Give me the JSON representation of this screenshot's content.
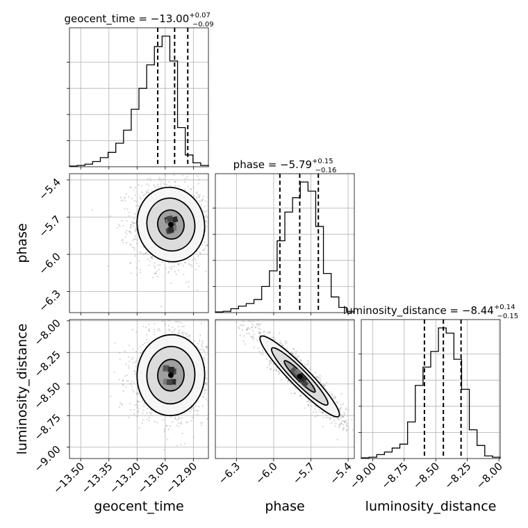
{
  "chart_data": {
    "type": "corner",
    "grid": true,
    "parameters": [
      {
        "name": "geocent_time",
        "title": {
          "prefix": "geocent_time = ",
          "median": "−13.00",
          "plus": "+0.07",
          "minus": "−0.09"
        },
        "median": -13.0,
        "quantiles": [
          -13.09,
          -13.0,
          -12.93
        ],
        "range": [
          -13.56,
          -12.82
        ],
        "ticks": [
          -13.5,
          -13.35,
          -13.2,
          -13.05,
          -12.9
        ],
        "tick_labels": [
          "−13.50",
          "−13.35",
          "−13.20",
          "−13.05",
          "−12.90"
        ],
        "hist_counts": [
          0.5,
          1,
          2,
          4,
          7,
          11,
          18,
          28,
          44,
          60,
          78,
          92,
          100,
          81,
          30,
          9,
          3,
          1
        ]
      },
      {
        "name": "phase",
        "title": {
          "prefix": "phase = ",
          "median": "−5.79",
          "plus": "+0.15",
          "minus": "−0.16"
        },
        "median": -5.79,
        "quantiles": [
          -5.95,
          -5.79,
          -5.64
        ],
        "range": [
          -6.47,
          -5.35
        ],
        "ticks": [
          -6.3,
          -6.0,
          -5.7,
          -5.4
        ],
        "tick_labels": [
          "−6.3",
          "−6.0",
          "−5.7",
          "−5.4"
        ],
        "hist_counts": [
          0.5,
          1,
          3,
          5,
          7,
          10,
          20,
          32,
          55,
          77,
          88,
          100,
          93,
          66,
          30,
          12,
          4,
          1
        ]
      },
      {
        "name": "luminosity_distance",
        "title": {
          "prefix": "luminosity_distance = ",
          "median": "−8.44",
          "plus": "+0.14",
          "minus": "−0.15"
        },
        "median": -8.44,
        "quantiles": [
          -8.59,
          -8.44,
          -8.3
        ],
        "range": [
          -9.09,
          -7.99
        ],
        "ticks": [
          -9.0,
          -8.75,
          -8.5,
          -8.25,
          -8.0
        ],
        "tick_labels": [
          "−9.00",
          "−8.75",
          "−8.50",
          "−8.25",
          "−8.00"
        ],
        "hist_counts": [
          0.5,
          1,
          3,
          5,
          8,
          11,
          28,
          56,
          70,
          82,
          100,
          96,
          76,
          53,
          22,
          10,
          2,
          1
        ]
      }
    ],
    "pairs": [
      {
        "x": "geocent_time",
        "y": "phase",
        "center": [
          -13.02,
          -5.76
        ],
        "sigma": [
          0.09,
          0.15
        ],
        "rho": -0.05
      },
      {
        "x": "geocent_time",
        "y": "luminosity_distance",
        "center": [
          -13.02,
          -8.43
        ],
        "sigma": [
          0.09,
          0.16
        ],
        "rho": 0.02
      },
      {
        "x": "phase",
        "y": "luminosity_distance",
        "center": [
          -5.79,
          -8.44
        ],
        "sigma": [
          0.16,
          0.16
        ],
        "rho": -0.94
      }
    ],
    "scatter_color": "#888888",
    "contour_color": "#000000",
    "quantile_line_style": "dashed"
  }
}
